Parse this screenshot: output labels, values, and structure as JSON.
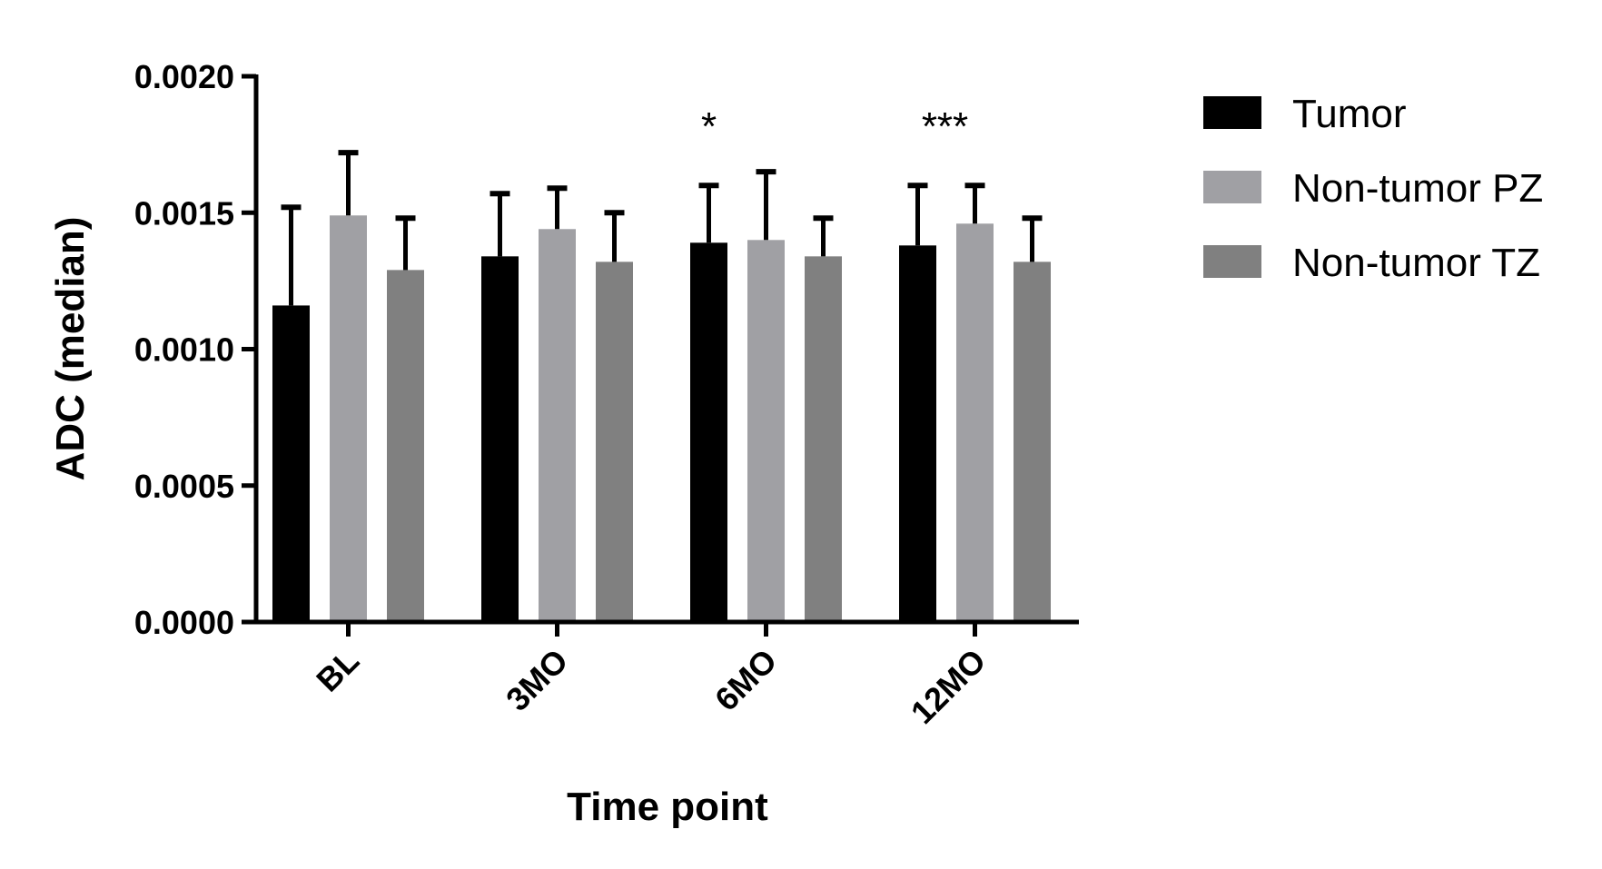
{
  "chart_data": {
    "type": "bar",
    "title": "",
    "xlabel": "Time point",
    "ylabel": "ADC (median)",
    "ylim": [
      0,
      0.002
    ],
    "yticks": [
      "0.0000",
      "0.0005",
      "0.0010",
      "0.0015",
      "0.0020"
    ],
    "categories": [
      "BL",
      "3MO",
      "6MO",
      "12MO"
    ],
    "series": [
      {
        "name": "Tumor",
        "color": "#000000",
        "values": [
          0.00116,
          0.00134,
          0.00139,
          0.00138
        ],
        "error": [
          0.00036,
          0.00023,
          0.00021,
          0.00022
        ]
      },
      {
        "name": "Non-tumor PZ",
        "color": "#a0a0a4",
        "values": [
          0.00149,
          0.00144,
          0.0014,
          0.00146
        ],
        "error": [
          0.00023,
          0.00015,
          0.00025,
          0.00014
        ]
      },
      {
        "name": "Non-tumor TZ",
        "color": "#808080",
        "values": [
          0.00129,
          0.00132,
          0.00134,
          0.00132
        ],
        "error": [
          0.00019,
          0.00018,
          0.00014,
          0.00016
        ]
      }
    ],
    "annotations": [
      {
        "category": "6MO",
        "text": "*"
      },
      {
        "category": "12MO",
        "text": "***"
      }
    ],
    "legend_position": "top-right",
    "grid": false
  }
}
